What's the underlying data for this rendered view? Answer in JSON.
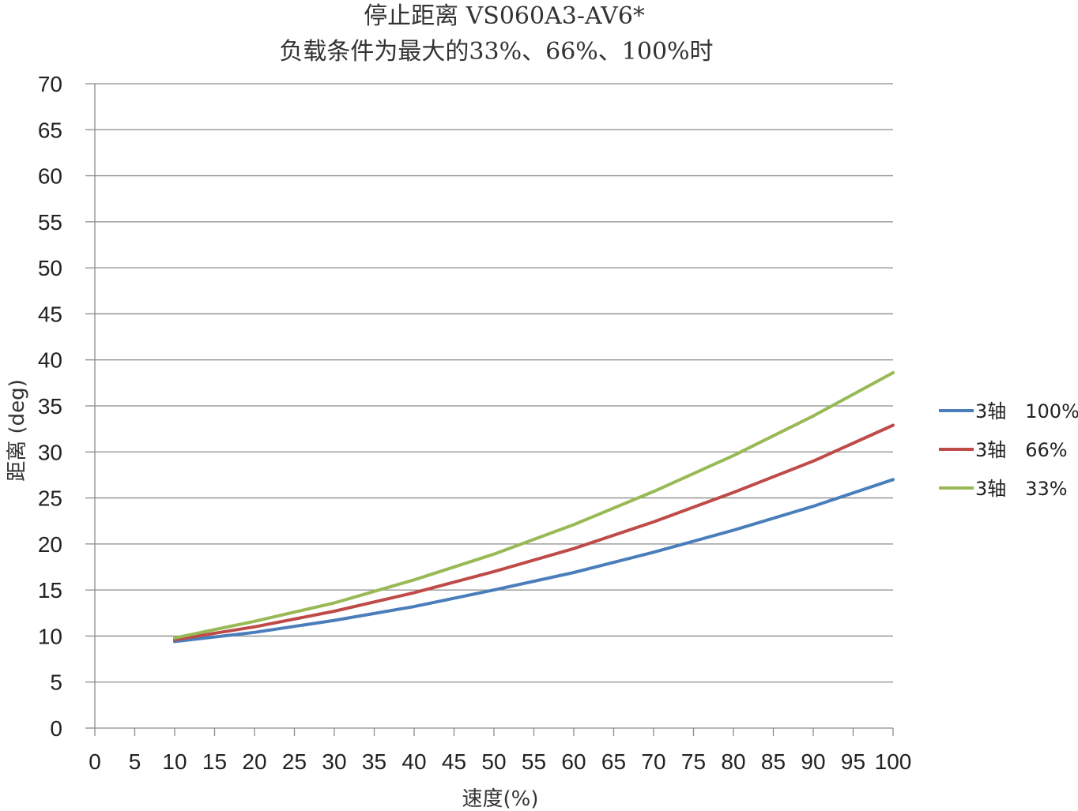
{
  "chart_data": {
    "type": "line",
    "title": "停止距离 VS060A3-AV6*",
    "subtitle": "负载条件为最大的33%、66%、100%时",
    "xlabel": "速度(%)",
    "ylabel": "距离 (deg)",
    "xlim": [
      0,
      100
    ],
    "ylim": [
      0,
      70
    ],
    "x_ticks": [
      0,
      5,
      10,
      15,
      20,
      25,
      30,
      35,
      40,
      45,
      50,
      55,
      60,
      65,
      70,
      75,
      80,
      85,
      90,
      95,
      100
    ],
    "y_ticks": [
      0,
      5,
      10,
      15,
      20,
      25,
      30,
      35,
      40,
      45,
      50,
      55,
      60,
      65,
      70
    ],
    "grid": "horizontal",
    "legend_position": "right",
    "x": [
      10,
      20,
      30,
      40,
      50,
      60,
      70,
      80,
      90,
      100
    ],
    "series": [
      {
        "name": "3轴　100%",
        "color": "#4A7EBB",
        "values": [
          9.4,
          10.4,
          11.7,
          13.2,
          15.0,
          16.9,
          19.1,
          21.5,
          24.1,
          27.0
        ]
      },
      {
        "name": "3轴　66%",
        "color": "#BE4B48",
        "values": [
          9.6,
          11.0,
          12.7,
          14.7,
          17.0,
          19.5,
          22.4,
          25.6,
          29.0,
          32.9
        ]
      },
      {
        "name": "3轴　33%",
        "color": "#98B954",
        "values": [
          9.8,
          11.6,
          13.6,
          16.1,
          18.9,
          22.1,
          25.7,
          29.6,
          33.9,
          38.6
        ]
      }
    ]
  }
}
